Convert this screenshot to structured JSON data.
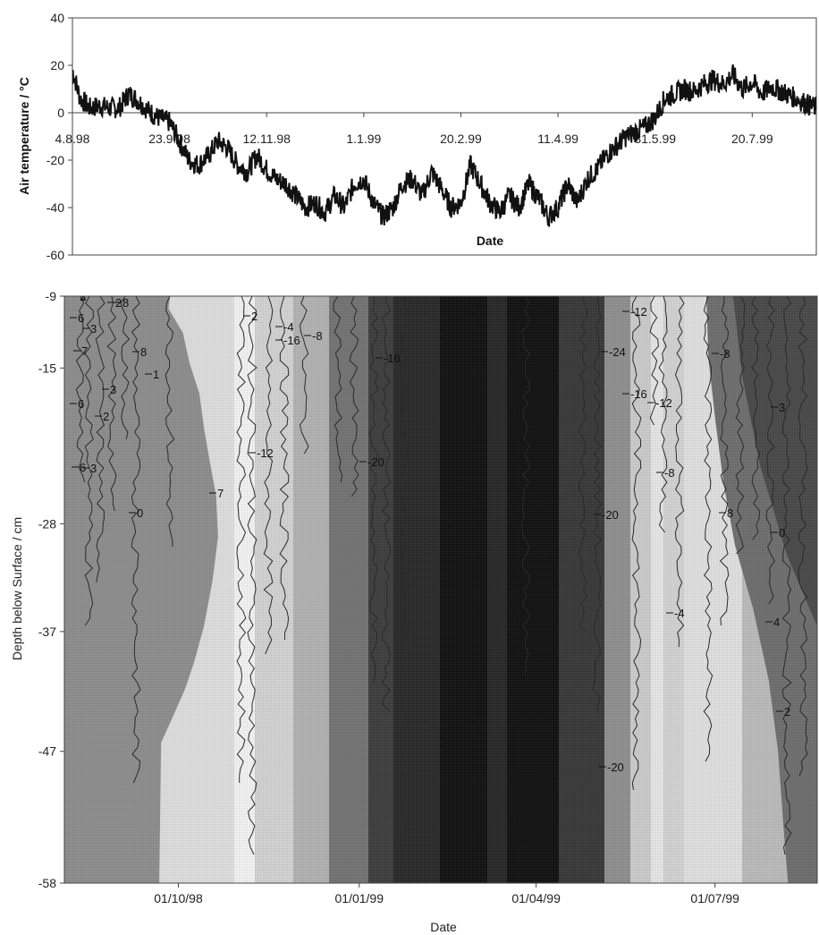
{
  "chart_data": [
    {
      "type": "line",
      "ylabel": "Air temperature / °C",
      "xlabel": "Date",
      "ylim": [
        -60,
        40
      ],
      "yticks": [
        "40",
        "20",
        "0",
        "-20",
        "-40",
        "-60"
      ],
      "xtick_labels": [
        "4.8.98",
        "23.9.98",
        "12.11.98",
        "1.1.99",
        "20.2.99",
        "11.4.99",
        "31.5.99",
        "20.7.99"
      ],
      "xtick_dates": [
        "1998-08-04",
        "1998-09-23",
        "1998-11-12",
        "1999-01-01",
        "1999-02-20",
        "1999-04-11",
        "1999-05-31",
        "1999-07-20"
      ],
      "xlim": [
        "1998-08-04",
        "1999-08-22"
      ],
      "grid": false,
      "series": [
        {
          "x": [
            "1998-08-04",
            "1998-08-08",
            "1998-08-13",
            "1998-08-18",
            "1998-08-23",
            "1998-08-28",
            "1998-09-02",
            "1998-09-07",
            "1998-09-12",
            "1998-09-17",
            "1998-09-23",
            "1998-09-28",
            "1998-10-03",
            "1998-10-08",
            "1998-10-13",
            "1998-10-18",
            "1998-10-23",
            "1998-10-28",
            "1998-11-02",
            "1998-11-07",
            "1998-11-12",
            "1998-11-17",
            "1998-11-22",
            "1998-11-27",
            "1998-12-02",
            "1998-12-07",
            "1998-12-12",
            "1998-12-17",
            "1998-12-22",
            "1998-12-27",
            "1999-01-01",
            "1999-01-06",
            "1999-01-11",
            "1999-01-16",
            "1999-01-21",
            "1999-01-26",
            "1999-01-31",
            "1999-02-05",
            "1999-02-10",
            "1999-02-15",
            "1999-02-20",
            "1999-02-25",
            "1999-03-02",
            "1999-03-07",
            "1999-03-12",
            "1999-03-17",
            "1999-03-22",
            "1999-03-27",
            "1999-04-01",
            "1999-04-06",
            "1999-04-11",
            "1999-04-16",
            "1999-04-21",
            "1999-04-26",
            "1999-05-01",
            "1999-05-06",
            "1999-05-11",
            "1999-05-16",
            "1999-05-21",
            "1999-05-26",
            "1999-05-31",
            "1999-06-05",
            "1999-06-10",
            "1999-06-15",
            "1999-06-20",
            "1999-06-25",
            "1999-06-30",
            "1999-07-05",
            "1999-07-10",
            "1999-07-15",
            "1999-07-20",
            "1999-07-25",
            "1999-07-30",
            "1999-08-04",
            "1999-08-09",
            "1999-08-14",
            "1999-08-19",
            "1999-08-22"
          ],
          "y": [
            18,
            6,
            2,
            3,
            2,
            2,
            8,
            5,
            1,
            -2,
            -4,
            -12,
            -20,
            -22,
            -18,
            -12,
            -15,
            -22,
            -25,
            -18,
            -24,
            -28,
            -30,
            -35,
            -40,
            -38,
            -42,
            -35,
            -40,
            -30,
            -28,
            -38,
            -44,
            -40,
            -30,
            -28,
            -35,
            -25,
            -32,
            -40,
            -38,
            -22,
            -30,
            -38,
            -42,
            -35,
            -40,
            -30,
            -36,
            -44,
            -40,
            -30,
            -38,
            -28,
            -24,
            -18,
            -14,
            -10,
            -8,
            -6,
            -2,
            6,
            8,
            10,
            9,
            12,
            14,
            12,
            16,
            10,
            13,
            8,
            11,
            9,
            7,
            5,
            3,
            2
          ]
        }
      ],
      "direct_labels": []
    },
    {
      "type": "heatmap",
      "ylabel": "Depth below Surface / cm",
      "xlabel": "Date",
      "ylim": [
        -58,
        -9
      ],
      "yticks": [
        "-9",
        "-15",
        "-28",
        "-37",
        "-47",
        "-58"
      ],
      "xtick_labels": [
        "01/10/98",
        "01/01/99",
        "01/04/99",
        "01/07/99"
      ],
      "xtick_dates": [
        "1998-10-01",
        "1999-01-01",
        "1999-04-01",
        "1999-07-01"
      ],
      "xlim": [
        "1998-08-04",
        "1999-08-22"
      ],
      "grid": false,
      "contour_labels": [
        "3",
        "2",
        "6",
        "8",
        "3",
        "7",
        "8",
        "1",
        "3",
        "6",
        "2",
        "6",
        "3",
        "7",
        "0",
        "2",
        "-4",
        "-12",
        "-8",
        "-16",
        "-16",
        "-20",
        "-24",
        "-12",
        "-16",
        "-12",
        "-8",
        "-20",
        "-4",
        "-20",
        "-8",
        "3",
        "8",
        "0",
        "4",
        "2",
        "1"
      ]
    }
  ]
}
